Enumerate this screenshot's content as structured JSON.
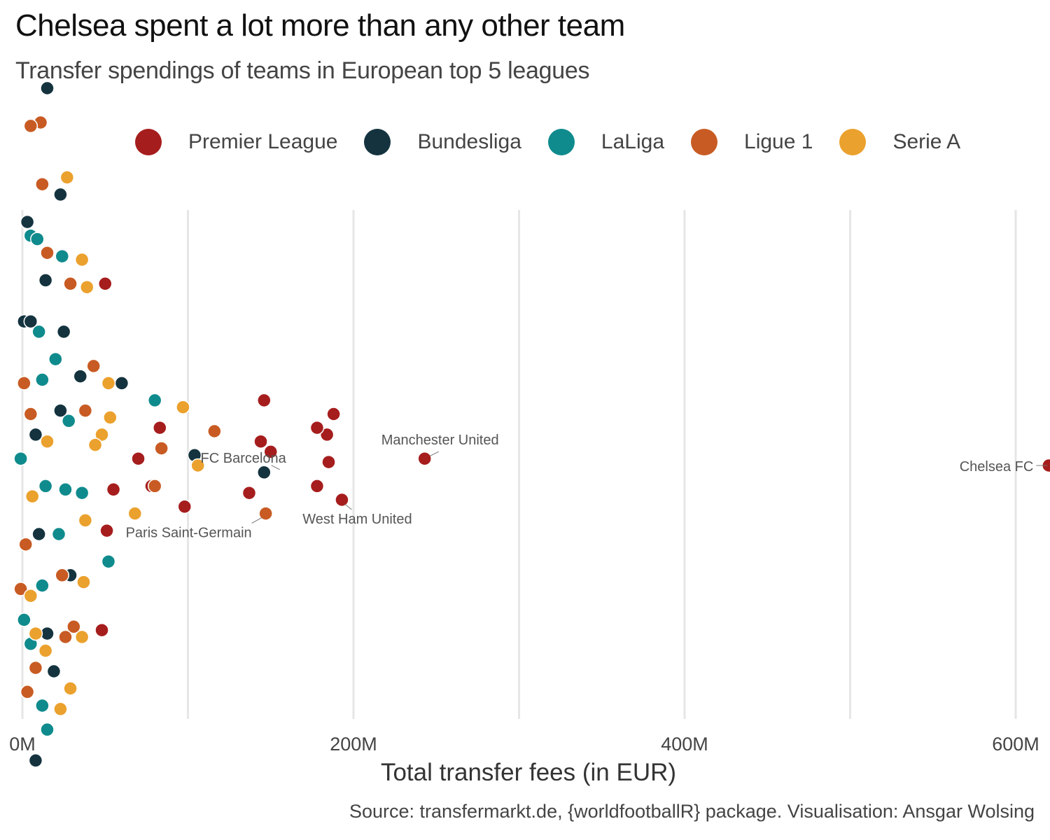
{
  "title": "Chelsea spent a lot more than any other team",
  "subtitle": "Transfer spendings of teams in European top 5 leagues",
  "caption": "Source: transfermarkt.de, {worldfootballR} package. Visualisation: Ansgar Wolsing",
  "chart_data": {
    "type": "scatter",
    "title": "Chelsea spent a lot more than any other team",
    "subtitle": "Transfer spendings of teams in European top 5 leagues",
    "xlabel": "Total transfer fees (in EUR)",
    "ylabel": "",
    "xlim": [
      0,
      610
    ],
    "x_ticks": [
      {
        "value": 0,
        "label": "0M"
      },
      {
        "value": 200,
        "label": "200M"
      },
      {
        "value": 400,
        "label": "400M"
      },
      {
        "value": 600,
        "label": "600M"
      }
    ],
    "grid_x": [
      0,
      100,
      200,
      300,
      400,
      500,
      600
    ],
    "legend_position": "top",
    "series": [
      {
        "name": "Premier League",
        "color": "#A61D1D",
        "points": [
          [
            620,
            0
          ],
          [
            243,
            2
          ],
          [
            193,
            -10
          ],
          [
            188,
            15
          ],
          [
            185,
            1
          ],
          [
            184,
            9
          ],
          [
            178,
            11
          ],
          [
            178,
            -6
          ],
          [
            150,
            4
          ],
          [
            146,
            19
          ],
          [
            144,
            7
          ],
          [
            137,
            -8
          ],
          [
            98,
            -12
          ],
          [
            83,
            11
          ],
          [
            78,
            -6
          ],
          [
            70,
            2
          ],
          [
            55,
            -7
          ],
          [
            51,
            -19
          ],
          [
            50,
            53
          ],
          [
            48,
            -48
          ]
        ]
      },
      {
        "name": "Bundesliga",
        "color": "#14333F",
        "points": [
          [
            15,
            110
          ],
          [
            23,
            79
          ],
          [
            3,
            71
          ],
          [
            14,
            54
          ],
          [
            1,
            42
          ],
          [
            5,
            42
          ],
          [
            25,
            39
          ],
          [
            35,
            26
          ],
          [
            60,
            24
          ],
          [
            23,
            16
          ],
          [
            8,
            9
          ],
          [
            104,
            3
          ],
          [
            146,
            -2
          ],
          [
            10,
            -20
          ],
          [
            29,
            -32
          ],
          [
            15,
            -49
          ],
          [
            19,
            -60
          ],
          [
            8,
            -86
          ]
        ]
      },
      {
        "name": "LaLiga",
        "color": "#0F8B8D",
        "points": [
          [
            5,
            67
          ],
          [
            9,
            66
          ],
          [
            24,
            61
          ],
          [
            10,
            39
          ],
          [
            20,
            31
          ],
          [
            12,
            25
          ],
          [
            80,
            19
          ],
          [
            28,
            13
          ],
          [
            -1,
            2
          ],
          [
            14,
            -6
          ],
          [
            26,
            -7
          ],
          [
            36,
            -8
          ],
          [
            22,
            -20
          ],
          [
            52,
            -28
          ],
          [
            12,
            -35
          ],
          [
            1,
            -45
          ],
          [
            5,
            -52
          ],
          [
            12,
            -70
          ],
          [
            15,
            -77
          ]
        ]
      },
      {
        "name": "Ligue 1",
        "color": "#C85B23",
        "points": [
          [
            11,
            100
          ],
          [
            5,
            99
          ],
          [
            12,
            82
          ],
          [
            15,
            62
          ],
          [
            29,
            53
          ],
          [
            43,
            29
          ],
          [
            1,
            24
          ],
          [
            38,
            16
          ],
          [
            5,
            15
          ],
          [
            116,
            10
          ],
          [
            84,
            5
          ],
          [
            80,
            -6
          ],
          [
            147,
            -14
          ],
          [
            2,
            -23
          ],
          [
            24,
            -32
          ],
          [
            -1,
            -36
          ],
          [
            31,
            -47
          ],
          [
            26,
            -50
          ],
          [
            8,
            -59
          ],
          [
            3,
            -66
          ]
        ]
      },
      {
        "name": "Serie A",
        "color": "#EBA12D",
        "points": [
          [
            27,
            84
          ],
          [
            36,
            60
          ],
          [
            39,
            52
          ],
          [
            52,
            24
          ],
          [
            53,
            14
          ],
          [
            97,
            17
          ],
          [
            15,
            7
          ],
          [
            48,
            9
          ],
          [
            44,
            6
          ],
          [
            106,
            0
          ],
          [
            6,
            -9
          ],
          [
            68,
            -14
          ],
          [
            38,
            -16
          ],
          [
            37,
            -34
          ],
          [
            5,
            -38
          ],
          [
            8,
            -49
          ],
          [
            36,
            -50
          ],
          [
            14,
            -54
          ],
          [
            29,
            -65
          ],
          [
            23,
            -71
          ]
        ]
      }
    ],
    "annotations": [
      {
        "label": "Chelsea FC",
        "x": 620,
        "y": 0
      },
      {
        "label": "Manchester United",
        "x": 243,
        "y": 2
      },
      {
        "label": "FC Barcelona",
        "x": 158,
        "y": -2
      },
      {
        "label": "West Ham United",
        "x": 193,
        "y": -10
      },
      {
        "label": "Paris Saint-Germain",
        "x": 147,
        "y": -14
      }
    ]
  }
}
